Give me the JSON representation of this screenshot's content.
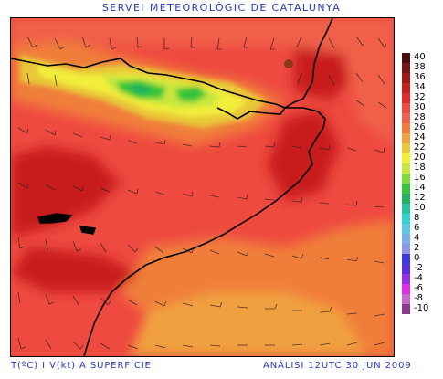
{
  "header": {
    "title": "SERVEI METEOROLÒGIC DE CATALUNYA"
  },
  "footer": {
    "field_label": "T(ºC) I V(kt) A SUPERFÍCIE",
    "analysis_label": "ANÀLISI 12UTC 30 JUN 2009"
  },
  "legend": {
    "items": [
      {
        "label": "40",
        "color": "#4a0c0c"
      },
      {
        "label": "38",
        "color": "#7a1414"
      },
      {
        "label": "36",
        "color": "#a01818"
      },
      {
        "label": "34",
        "color": "#c81f1f"
      },
      {
        "label": "32",
        "color": "#e02c2c"
      },
      {
        "label": "30",
        "color": "#ee4a40"
      },
      {
        "label": "28",
        "color": "#f0604a"
      },
      {
        "label": "26",
        "color": "#f07e3a"
      },
      {
        "label": "24",
        "color": "#f0a040"
      },
      {
        "label": "22",
        "color": "#e8c838"
      },
      {
        "label": "20",
        "color": "#f2ee3a"
      },
      {
        "label": "18",
        "color": "#c8e63c"
      },
      {
        "label": "16",
        "color": "#7ed83e"
      },
      {
        "label": "14",
        "color": "#36c43a"
      },
      {
        "label": "12",
        "color": "#24b060"
      },
      {
        "label": "10",
        "color": "#28c4a0"
      },
      {
        "label": "8",
        "color": "#30d2d2"
      },
      {
        "label": "6",
        "color": "#5cc8e6"
      },
      {
        "label": "4",
        "color": "#7aaee8"
      },
      {
        "label": "2",
        "color": "#8a96e8"
      },
      {
        "label": "0",
        "color": "#3a3ae0"
      },
      {
        "label": "-2",
        "color": "#5a2ee0"
      },
      {
        "label": "-4",
        "color": "#9a2ee8"
      },
      {
        "label": "-6",
        "color": "#e02ee6"
      },
      {
        "label": "-8",
        "color": "#c868c8"
      },
      {
        "label": "-10",
        "color": "#8a3a8a"
      }
    ]
  },
  "colors": {
    "title_text": "#2a35c8",
    "background": "#ffffff",
    "coastline": "#000000"
  }
}
